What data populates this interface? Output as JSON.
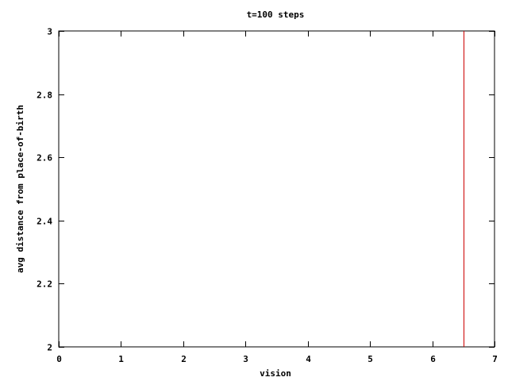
{
  "chart_data": {
    "type": "line",
    "title": "t=100 steps",
    "xlabel": "vision",
    "ylabel": "avg distance from place-of-birth",
    "xlim": [
      0,
      7
    ],
    "ylim": [
      2,
      3
    ],
    "x_ticks": [
      0,
      1,
      2,
      3,
      4,
      5,
      6,
      7
    ],
    "y_ticks": [
      2,
      2.2,
      2.4,
      2.6,
      2.8,
      3
    ],
    "x_tick_labels": [
      "0",
      "1",
      "2",
      "3",
      "4",
      "5",
      "6",
      "7"
    ],
    "y_tick_labels": [
      "2",
      "2.2",
      "2.4",
      "2.6",
      "2.8",
      "3"
    ],
    "grid": false,
    "legend": "none",
    "series": [
      {
        "color": "#cc0000",
        "points": [
          {
            "x": 6.5,
            "y": 2
          },
          {
            "x": 6.5,
            "y": 3
          }
        ]
      }
    ]
  }
}
